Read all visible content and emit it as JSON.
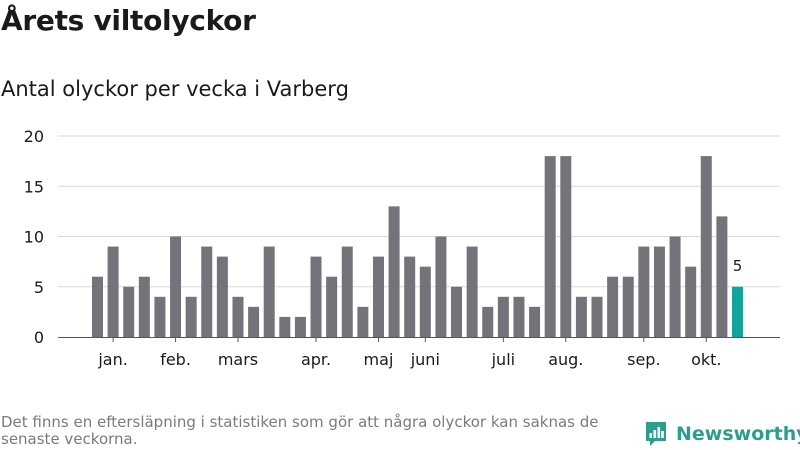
{
  "title": "Årets viltolyckor",
  "subtitle": "Antal olyckor per vecka i Varberg",
  "footnote": "Det finns en eftersläpning i statistiken som gör att några olyckor kan saknas de senaste veckorna.",
  "logo": {
    "text": "Newsworthy",
    "icon": "newsworthy-logo-icon"
  },
  "colors": {
    "bar": "#75737a",
    "highlight": "#12a39b",
    "grid": "#d9d9d9",
    "axis": "#555555",
    "brand": "#2d9d90"
  },
  "chart_data": {
    "type": "bar",
    "title": "Årets viltolyckor",
    "subtitle": "Antal olyckor per vecka i Varberg",
    "xlabel": "",
    "ylabel": "",
    "x": [
      1,
      2,
      3,
      4,
      5,
      6,
      7,
      8,
      9,
      10,
      11,
      12,
      13,
      14,
      15,
      16,
      17,
      18,
      19,
      20,
      21,
      22,
      23,
      24,
      25,
      26,
      27,
      28,
      29,
      30,
      31,
      32,
      33,
      34,
      35,
      36,
      37,
      38,
      39,
      40,
      41,
      42
    ],
    "values": [
      6,
      9,
      5,
      6,
      4,
      10,
      4,
      9,
      8,
      4,
      3,
      9,
      2,
      2,
      8,
      6,
      9,
      3,
      8,
      13,
      8,
      7,
      10,
      5,
      9,
      3,
      4,
      4,
      3,
      18,
      18,
      4,
      4,
      6,
      6,
      9,
      9,
      10,
      7,
      18,
      12,
      5
    ],
    "highlight_index": 41,
    "highlight_label": "5",
    "ylim": [
      0,
      20
    ],
    "yticks": [
      0,
      5,
      10,
      15,
      20
    ],
    "xticks": [
      {
        "label": "jan.",
        "x": 2
      },
      {
        "label": "feb.",
        "x": 6
      },
      {
        "label": "mars",
        "x": 10
      },
      {
        "label": "apr.",
        "x": 15
      },
      {
        "label": "maj",
        "x": 19
      },
      {
        "label": "juni",
        "x": 22
      },
      {
        "label": "juli",
        "x": 27
      },
      {
        "label": "aug.",
        "x": 31
      },
      {
        "label": "sep.",
        "x": 36
      },
      {
        "label": "okt.",
        "x": 40
      }
    ],
    "grid": true,
    "legend": "none"
  }
}
